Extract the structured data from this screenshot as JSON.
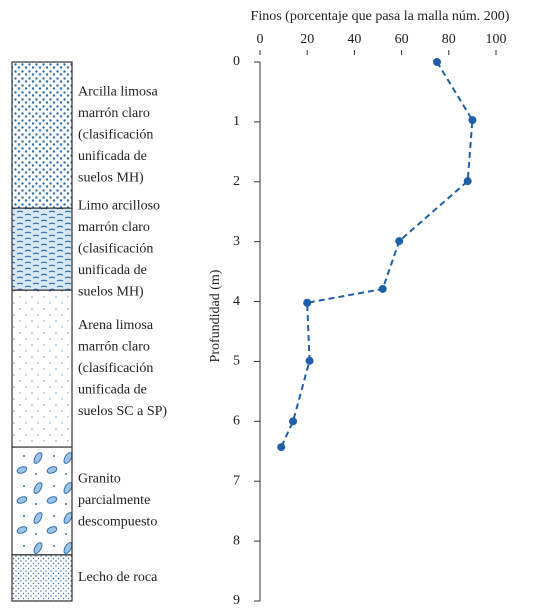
{
  "chart_data": {
    "type": "line",
    "title": "Finos (porcentaje que pasa la malla núm. 200)",
    "y_label": "Profundidad (m)",
    "x": [
      75,
      90,
      88,
      59,
      52,
      20,
      21,
      14,
      9
    ],
    "values": [
      0,
      0.97,
      1.99,
      2.99,
      3.79,
      4.02,
      4.99,
      6.0,
      6.43
    ],
    "color": "#1f5fa8",
    "xlim": [
      0,
      100
    ],
    "xticks": [
      0,
      20,
      40,
      60,
      80,
      100
    ],
    "ylim": [
      0,
      9
    ],
    "yticks": [
      0,
      1,
      2,
      3,
      4,
      5,
      6,
      7,
      8,
      9
    ],
    "layers": [
      {
        "label": [
          "Arcilla limosa",
          "marrón claro",
          "(clasificación",
          "unificada de",
          "suelos MH)"
        ],
        "from": 0,
        "to": 2.44
      },
      {
        "label": [
          "Limo arcilloso",
          "marrón claro",
          "(clasificación",
          "unificada de",
          "suelos MH)"
        ],
        "from": 2.44,
        "to": 3.81
      },
      {
        "label": [
          "Arena limosa",
          "marrón claro",
          "(clasificación",
          "unificada de",
          "suelos SC a SP)"
        ],
        "from": 3.81,
        "to": 6.43
      },
      {
        "label": [
          "Granito",
          "parcialmente",
          "descompuesto"
        ],
        "from": 6.43,
        "to": 8.23
      },
      {
        "label": [
          "Lecho de roca"
        ],
        "from": 8.23,
        "to": 9
      }
    ]
  }
}
